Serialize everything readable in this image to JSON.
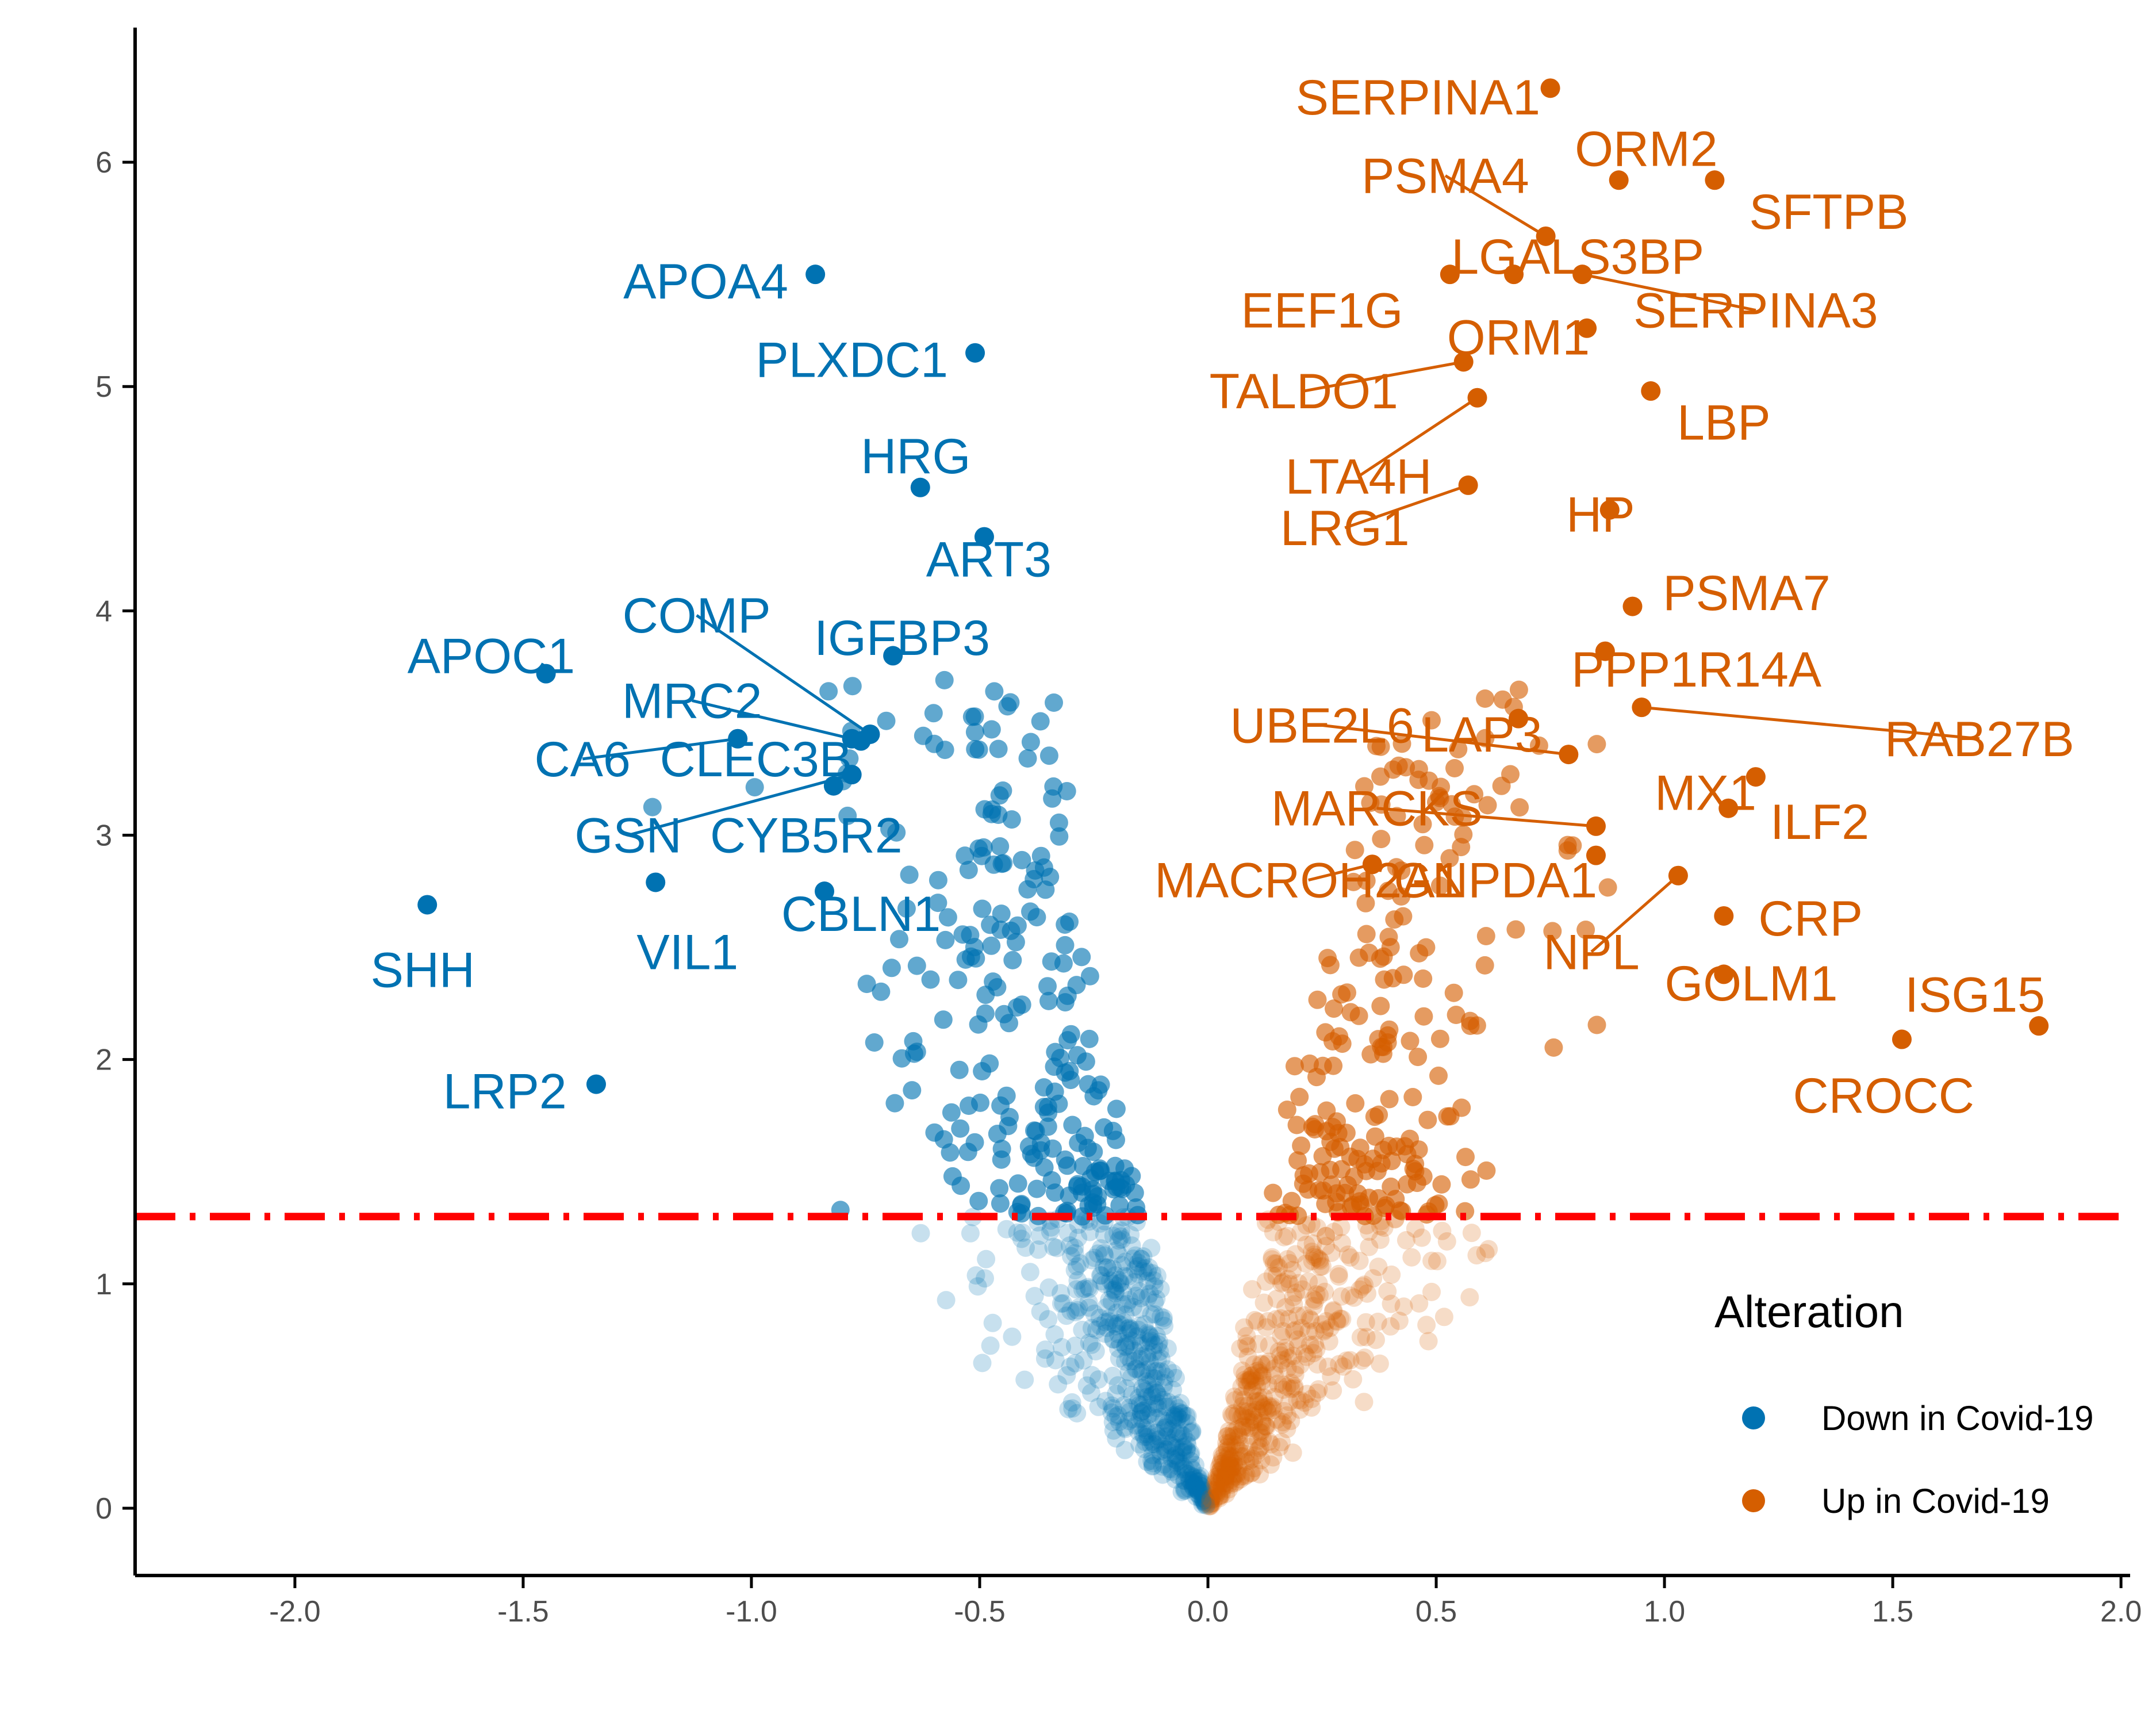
{
  "colors": {
    "down": "#0072B2",
    "up": "#D55E00",
    "threshold": "#FF0000",
    "axis": "#000000",
    "tick_text": "#4d4d4d"
  },
  "legend": {
    "title": "Alteration",
    "items": [
      {
        "label": "Down in Covid-19",
        "color": "#0072B2"
      },
      {
        "label": "Up in Covid-19",
        "color": "#D55E00"
      }
    ]
  },
  "chart_data": {
    "type": "scatter",
    "title": "",
    "xlabel": "",
    "ylabel": "",
    "xlim": [
      -2.35,
      2.02
    ],
    "ylim": [
      -0.3,
      6.6
    ],
    "xticks": [
      -2.0,
      -1.5,
      -1.0,
      -0.5,
      0.0,
      0.5,
      1.0,
      1.5,
      2.0
    ],
    "xtick_labels": [
      "-2.0",
      "-1.5",
      "-1.0",
      "-0.5",
      "0.0",
      "0.5",
      "1.0",
      "1.5",
      "2.0"
    ],
    "yticks": [
      0,
      1,
      2,
      3,
      4,
      5,
      6
    ],
    "ytick_labels": [
      "0",
      "1",
      "2",
      "3",
      "4",
      "5",
      "6"
    ],
    "threshold_y": 1.3,
    "threshold_style": "dot-dash",
    "grid": false,
    "legend_position": "right",
    "labeled_points": [
      {
        "gene": "SERPINA1",
        "x": 0.75,
        "y": 6.33,
        "group": "up",
        "lx": 0.46,
        "ly": 6.29
      },
      {
        "gene": "ORM2",
        "x": 0.9,
        "y": 5.92,
        "group": "up",
        "lx": 0.96,
        "ly": 6.06
      },
      {
        "gene": "SFTPB",
        "x": 1.11,
        "y": 5.92,
        "group": "up",
        "lx": 1.36,
        "ly": 5.78
      },
      {
        "gene": "PSMA4",
        "x": 0.74,
        "y": 5.67,
        "group": "up",
        "lx": 0.52,
        "ly": 5.94,
        "leader": true
      },
      {
        "gene": "LGALS3BP",
        "x": 0.67,
        "y": 5.5,
        "group": "up",
        "lx": 0.81,
        "ly": 5.58
      },
      {
        "gene": "SERPINA3",
        "x": 0.82,
        "y": 5.5,
        "group": "up",
        "lx": 1.2,
        "ly": 5.34,
        "leader": true
      },
      {
        "gene": "EEF1G",
        "x": 0.53,
        "y": 5.5,
        "group": "up",
        "lx": 0.25,
        "ly": 5.34
      },
      {
        "gene": "ORM1",
        "x": 0.83,
        "y": 5.26,
        "group": "up",
        "lx": 0.68,
        "ly": 5.22
      },
      {
        "gene": "TALDO1",
        "x": 0.56,
        "y": 5.11,
        "group": "up",
        "lx": 0.21,
        "ly": 4.98,
        "leader": true
      },
      {
        "gene": "LBP",
        "x": 0.97,
        "y": 4.98,
        "group": "up",
        "lx": 1.13,
        "ly": 4.84
      },
      {
        "gene": "LTA4H",
        "x": 0.59,
        "y": 4.95,
        "group": "up",
        "lx": 0.33,
        "ly": 4.6,
        "leader": true
      },
      {
        "gene": "LRG1",
        "x": 0.57,
        "y": 4.56,
        "group": "up",
        "lx": 0.3,
        "ly": 4.37,
        "leader": true
      },
      {
        "gene": "HP",
        "x": 0.88,
        "y": 4.45,
        "group": "up",
        "lx": 0.86,
        "ly": 4.43
      },
      {
        "gene": "PSMA7",
        "x": 0.93,
        "y": 4.02,
        "group": "up",
        "lx": 1.18,
        "ly": 4.08
      },
      {
        "gene": "PPP1R14A",
        "x": 0.87,
        "y": 3.82,
        "group": "up",
        "lx": 1.07,
        "ly": 3.74
      },
      {
        "gene": "RAB27B",
        "x": 0.95,
        "y": 3.57,
        "group": "up",
        "lx": 1.69,
        "ly": 3.43,
        "leader": true
      },
      {
        "gene": "UBE2L6",
        "x": 0.79,
        "y": 3.36,
        "group": "up",
        "lx": 0.25,
        "ly": 3.49,
        "leader": true
      },
      {
        "gene": "LAP3",
        "x": 0.68,
        "y": 3.52,
        "group": "up",
        "lx": 0.6,
        "ly": 3.45
      },
      {
        "gene": "MX1",
        "x": 1.14,
        "y": 3.12,
        "group": "up",
        "lx": 1.09,
        "ly": 3.19
      },
      {
        "gene": "ILF2",
        "x": 1.2,
        "y": 3.26,
        "group": "up",
        "lx": 1.34,
        "ly": 3.06
      },
      {
        "gene": "MARCKS",
        "x": 0.85,
        "y": 3.04,
        "group": "up",
        "lx": 0.37,
        "ly": 3.12,
        "leader": true
      },
      {
        "gene": "MACROH2A1",
        "x": 0.36,
        "y": 2.87,
        "group": "up",
        "lx": 0.22,
        "ly": 2.8,
        "leader": true
      },
      {
        "gene": "GNPDA1",
        "x": 0.85,
        "y": 2.91,
        "group": "up",
        "lx": 0.63,
        "ly": 2.8
      },
      {
        "gene": "CRP",
        "x": 1.13,
        "y": 2.64,
        "group": "up",
        "lx": 1.32,
        "ly": 2.63
      },
      {
        "gene": "NPL",
        "x": 1.03,
        "y": 2.82,
        "group": "up",
        "lx": 0.84,
        "ly": 2.48,
        "leader": true
      },
      {
        "gene": "GOLM1",
        "x": 1.13,
        "y": 2.38,
        "group": "up",
        "lx": 1.19,
        "ly": 2.34
      },
      {
        "gene": "ISG15",
        "x": 1.82,
        "y": 2.15,
        "group": "up",
        "lx": 1.68,
        "ly": 2.29
      },
      {
        "gene": "CROCC",
        "x": 1.52,
        "y": 2.09,
        "group": "up",
        "lx": 1.48,
        "ly": 1.84
      },
      {
        "gene": "APOA4",
        "x": -0.86,
        "y": 5.5,
        "group": "down",
        "lx": -1.1,
        "ly": 5.47
      },
      {
        "gene": "PLXDC1",
        "x": -0.51,
        "y": 5.15,
        "group": "down",
        "lx": -0.78,
        "ly": 5.12
      },
      {
        "gene": "HRG",
        "x": -0.63,
        "y": 4.55,
        "group": "down",
        "lx": -0.64,
        "ly": 4.69
      },
      {
        "gene": "ART3",
        "x": -0.49,
        "y": 4.33,
        "group": "down",
        "lx": -0.48,
        "ly": 4.23
      },
      {
        "gene": "COMP",
        "x": -0.74,
        "y": 3.45,
        "group": "down",
        "lx": -1.12,
        "ly": 3.98,
        "leader": true
      },
      {
        "gene": "IGFBP3",
        "x": -0.69,
        "y": 3.8,
        "group": "down",
        "lx": -0.67,
        "ly": 3.88
      },
      {
        "gene": "APOC1",
        "x": -1.45,
        "y": 3.72,
        "group": "down",
        "lx": -1.57,
        "ly": 3.8
      },
      {
        "gene": "MRC2",
        "x": -0.76,
        "y": 3.42,
        "group": "down",
        "lx": -1.13,
        "ly": 3.6,
        "leader": true
      },
      {
        "gene": "CA6",
        "x": -1.03,
        "y": 3.43,
        "group": "down",
        "lx": -1.37,
        "ly": 3.34,
        "leader": true
      },
      {
        "gene": "CLEC3B",
        "x": -0.78,
        "y": 3.43,
        "group": "down",
        "lx": -0.99,
        "ly": 3.34
      },
      {
        "gene": "GSN",
        "x": -0.78,
        "y": 3.27,
        "group": "down",
        "lx": -1.27,
        "ly": 3.0,
        "leader": true
      },
      {
        "gene": "CYB5R2",
        "x": -0.82,
        "y": 3.22,
        "group": "down",
        "lx": -0.88,
        "ly": 3.0
      },
      {
        "gene": "CBLN1",
        "x": -0.84,
        "y": 2.75,
        "group": "down",
        "lx": -0.76,
        "ly": 2.65
      },
      {
        "gene": "VIL1",
        "x": -1.21,
        "y": 2.79,
        "group": "down",
        "lx": -1.14,
        "ly": 2.48
      },
      {
        "gene": "SHH",
        "x": -1.71,
        "y": 2.69,
        "group": "down",
        "lx": -1.72,
        "ly": 2.4
      },
      {
        "gene": "LRP2",
        "x": -1.34,
        "y": 1.89,
        "group": "down",
        "lx": -1.54,
        "ly": 1.86
      }
    ]
  }
}
